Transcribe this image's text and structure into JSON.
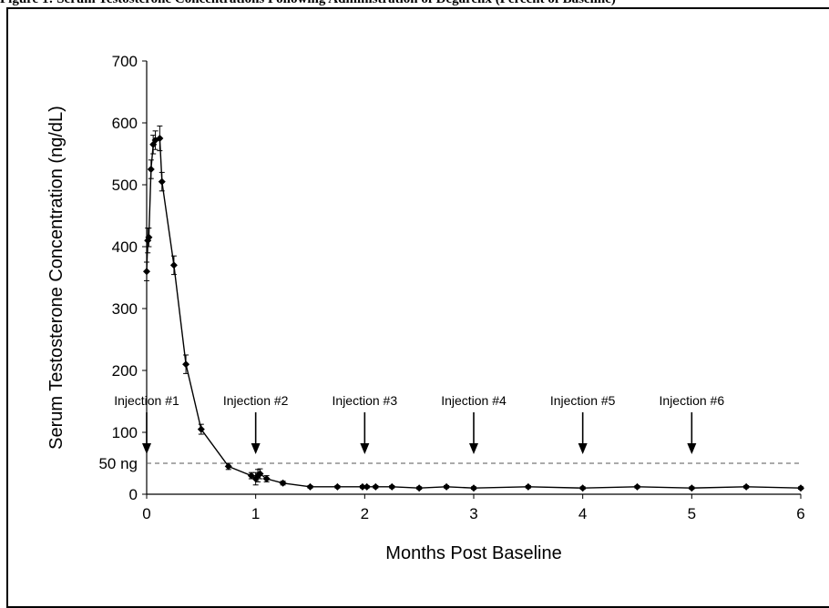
{
  "caption": "Figure 1: Serum Testosterone Concentrations Following Administration of Degarelix (Percent of Baseline)",
  "chart_data": {
    "type": "line",
    "xlabel": "Months Post Baseline",
    "ylabel": "Serum Testosterone Concentration (ng/dL)",
    "xlim": [
      0,
      6
    ],
    "ylim": [
      0,
      700
    ],
    "xticks": [
      "0",
      "1",
      "2",
      "3",
      "4",
      "5",
      "6"
    ],
    "yticks": [
      "0",
      "100",
      "200",
      "300",
      "400",
      "500",
      "600",
      "700"
    ],
    "yticks_values": [
      0,
      100,
      200,
      300,
      400,
      500,
      600,
      700
    ],
    "xticks_values": [
      0,
      1,
      2,
      3,
      4,
      5,
      6
    ],
    "grid": false,
    "reference_line": {
      "label": "50 ng",
      "value": 50
    },
    "injections": [
      {
        "label": "Injection #1",
        "month": 0
      },
      {
        "label": "Injection #2",
        "month": 1
      },
      {
        "label": "Injection #3",
        "month": 2
      },
      {
        "label": "Injection #4",
        "month": 3
      },
      {
        "label": "Injection #5",
        "month": 4
      },
      {
        "label": "Injection #6",
        "month": 5
      }
    ],
    "series": [
      {
        "x": [
          0,
          0.01,
          0.02,
          0.04,
          0.06,
          0.08,
          0.12,
          0.14,
          0.25,
          0.36,
          0.5,
          0.75,
          0.96,
          1.0,
          1.02,
          1.04,
          1.1,
          1.25,
          1.5,
          1.75,
          1.98,
          2.02,
          2.1,
          2.25,
          2.5,
          2.75,
          3.0,
          3.5,
          4.0,
          4.5,
          5.0,
          5.5,
          6.0
        ],
        "y": [
          360,
          410,
          415,
          525,
          565,
          572,
          575,
          505,
          370,
          210,
          105,
          45,
          30,
          25,
          30,
          33,
          25,
          18,
          12,
          12,
          12,
          12,
          12,
          12,
          10,
          12,
          10,
          12,
          10,
          12,
          10,
          12,
          10
        ],
        "error": [
          15,
          20,
          15,
          15,
          15,
          15,
          20,
          15,
          15,
          15,
          8,
          5,
          5,
          10,
          10,
          8,
          5,
          3,
          2,
          2,
          2,
          2,
          2,
          2,
          2,
          2,
          2,
          2,
          2,
          2,
          2,
          2,
          2
        ]
      }
    ]
  }
}
